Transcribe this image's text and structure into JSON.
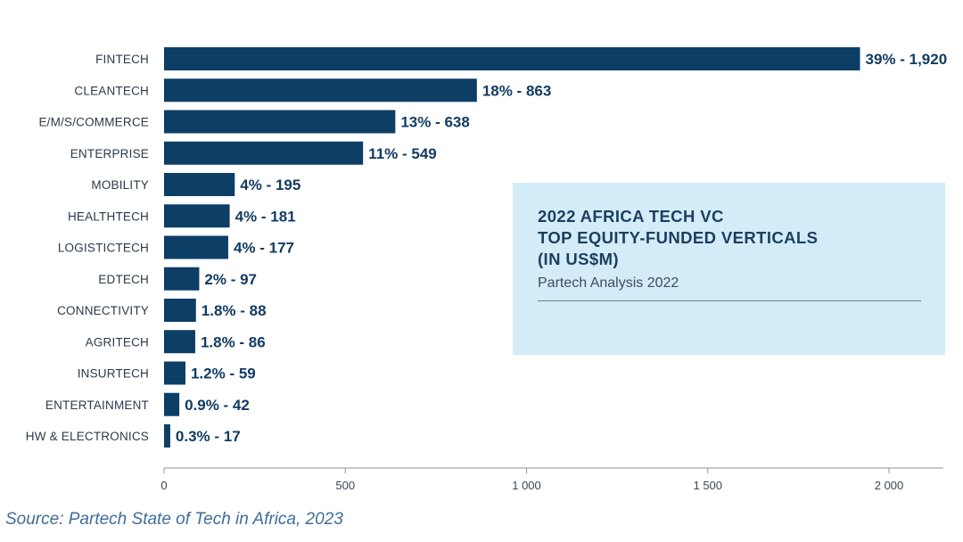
{
  "chart_data": {
    "type": "bar",
    "orientation": "horizontal",
    "title": "2022 AFRICA TECH VC TOP EQUITY-FUNDED VERTICALS (IN US$M)",
    "title_lines": [
      "2022 AFRICA TECH VC",
      "TOP EQUITY-FUNDED VERTICALS",
      "(IN US$M)"
    ],
    "subtitle": "Partech Analysis 2022",
    "categories": [
      "FINTECH",
      "CLEANTECH",
      "E/M/S/COMMERCE",
      "ENTERPRISE",
      "MOBILITY",
      "HEALTHTECH",
      "LOGISTICTECH",
      "EDTECH",
      "CONNECTIVITY",
      "AGRITECH",
      "INSURTECH",
      "ENTERTAINMENT",
      "HW & ELECTRONICS"
    ],
    "values": [
      1920,
      863,
      638,
      549,
      195,
      181,
      177,
      97,
      88,
      86,
      59,
      42,
      17
    ],
    "data_labels": [
      "39% - 1,920",
      "18% - 863",
      "13% - 638",
      "11% - 549",
      "4% - 195",
      "4% - 181",
      "4% - 177",
      "2% - 97",
      "1.8% - 88",
      "1.8% - 86",
      "1.2% - 59",
      "0.9% - 42",
      "0.3% - 17"
    ],
    "xlim": [
      0,
      2150
    ],
    "xticks": [
      0,
      500,
      1000,
      1500,
      2000
    ],
    "xtick_labels": [
      "0",
      "500",
      "1 000",
      "1 500",
      "2 000"
    ],
    "xlabel": "",
    "ylabel": "",
    "grid": false,
    "bar_color": "#0c3e66"
  },
  "source": "Source:  Partech State of Tech in Africa, 2023",
  "colors": {
    "bar": "#0c3e66",
    "info_box": "#d4ebf8",
    "source_text": "#3f6e98"
  }
}
